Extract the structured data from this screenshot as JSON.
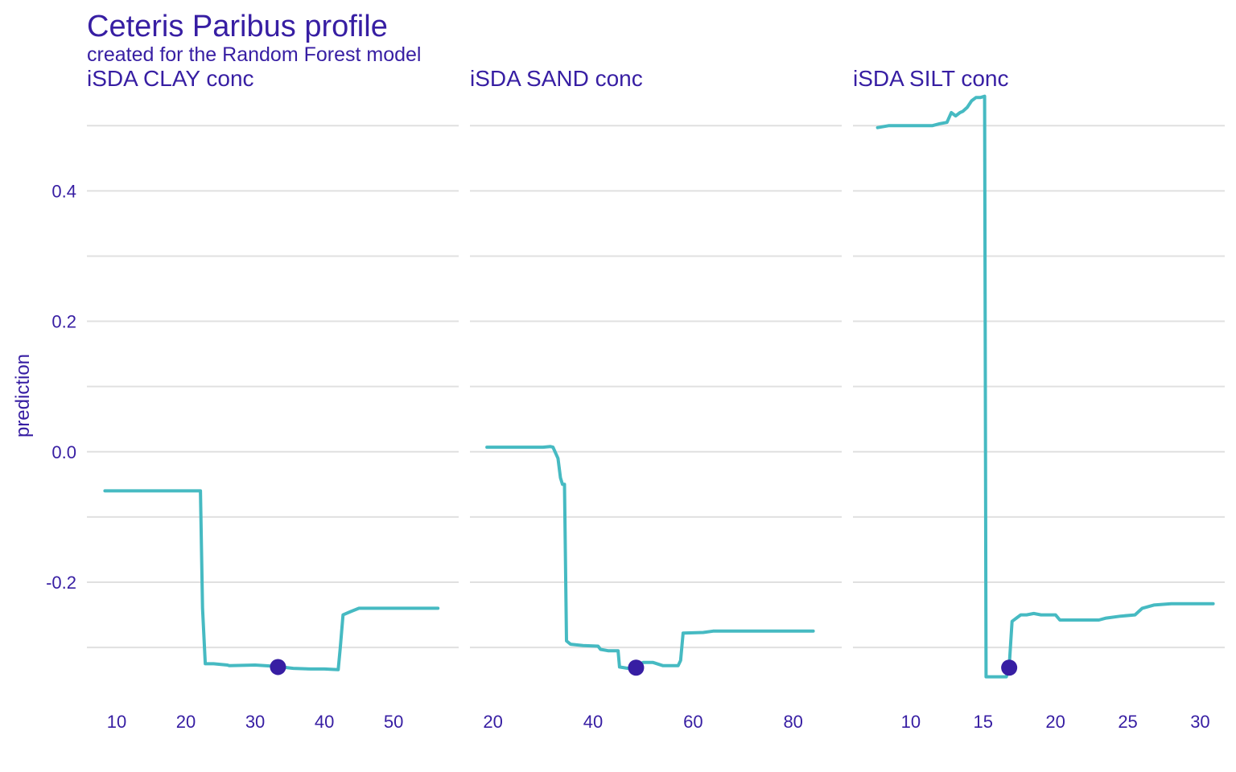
{
  "chart_data": {
    "type": "line",
    "title": "Ceteris Paribus profile",
    "subtitle": "created for the Random Forest model",
    "ylabel": "prediction",
    "ylim": [
      -0.38,
      0.52
    ],
    "yticks": [
      -0.2,
      0.0,
      0.2,
      0.4
    ],
    "ytick_labels": [
      "-0.2",
      "0.0",
      "0.2",
      "0.4"
    ],
    "grid": true,
    "legend": "none",
    "colors": {
      "profile": "#46bac2",
      "observation": "#371ea3",
      "text": "#371ea3",
      "grid": "#e0e0e0"
    },
    "panels": [
      {
        "name": "iSDA  CLAY  conc",
        "xlim": [
          5.7,
          59.4
        ],
        "xticks": [
          10,
          20,
          30,
          40,
          50
        ],
        "xtick_labels": [
          "10",
          "20",
          "30",
          "40",
          "50"
        ],
        "x": [
          8.3,
          22.1,
          22.4,
          22.8,
          24.0,
          26.0,
          26.3,
          30.0,
          33.0,
          35.5,
          38.0,
          40.0,
          42.0,
          42.3,
          42.7,
          43.8,
          45.0,
          56.4
        ],
        "y": [
          -0.06,
          -0.06,
          -0.24,
          -0.325,
          -0.325,
          -0.327,
          -0.328,
          -0.327,
          -0.329,
          -0.332,
          -0.333,
          -0.333,
          -0.334,
          -0.3,
          -0.25,
          -0.245,
          -0.24,
          -0.24
        ],
        "point": {
          "x": 33.3,
          "y": -0.33
        }
      },
      {
        "name": "iSDA  SAND  conc",
        "xlim": [
          15.4,
          89.7
        ],
        "xticks": [
          20,
          40,
          60,
          80
        ],
        "xtick_labels": [
          "20",
          "40",
          "60",
          "80"
        ],
        "x": [
          18.8,
          30.0,
          31.5,
          32.0,
          33.0,
          33.5,
          33.9,
          34.3,
          34.7,
          35.5,
          38.0,
          41.0,
          41.5,
          43.0,
          45.0,
          45.3,
          47.0,
          48.5,
          50.0,
          52.0,
          54.0,
          57.0,
          57.5,
          58.0,
          62.0,
          64.0,
          84.0
        ],
        "y": [
          0.007,
          0.007,
          0.008,
          0.007,
          -0.01,
          -0.04,
          -0.05,
          -0.05,
          -0.29,
          -0.295,
          -0.297,
          -0.298,
          -0.303,
          -0.305,
          -0.305,
          -0.33,
          -0.332,
          -0.33,
          -0.323,
          -0.323,
          -0.328,
          -0.328,
          -0.32,
          -0.278,
          -0.277,
          -0.275,
          -0.275
        ],
        "point": {
          "x": 48.6,
          "y": -0.331
        }
      },
      {
        "name": "iSDA  SILT  conc",
        "xlim": [
          6.0,
          31.7
        ],
        "xticks": [
          10,
          15,
          20,
          25,
          30
        ],
        "xtick_labels": [
          "10",
          "15",
          "20",
          "25",
          "30"
        ],
        "x": [
          7.7,
          8.5,
          11.5,
          12.0,
          12.5,
          12.8,
          13.1,
          13.4,
          13.6,
          13.9,
          14.2,
          14.5,
          14.8,
          15.1,
          15.2,
          16.6,
          16.8,
          17.0,
          17.3,
          17.6,
          18.0,
          18.5,
          19.0,
          20.0,
          20.3,
          22.0,
          23.0,
          23.5,
          24.5,
          25.5,
          26.0,
          26.8,
          28.0,
          30.9
        ],
        "y": [
          0.497,
          0.5,
          0.5,
          0.503,
          0.505,
          0.52,
          0.515,
          0.52,
          0.522,
          0.528,
          0.538,
          0.543,
          0.543,
          0.545,
          -0.345,
          -0.345,
          -0.33,
          -0.26,
          -0.255,
          -0.25,
          -0.25,
          -0.248,
          -0.25,
          -0.25,
          -0.258,
          -0.258,
          -0.258,
          -0.255,
          -0.252,
          -0.25,
          -0.24,
          -0.235,
          -0.233,
          -0.233
        ],
        "point": {
          "x": 16.8,
          "y": -0.331
        }
      }
    ]
  }
}
